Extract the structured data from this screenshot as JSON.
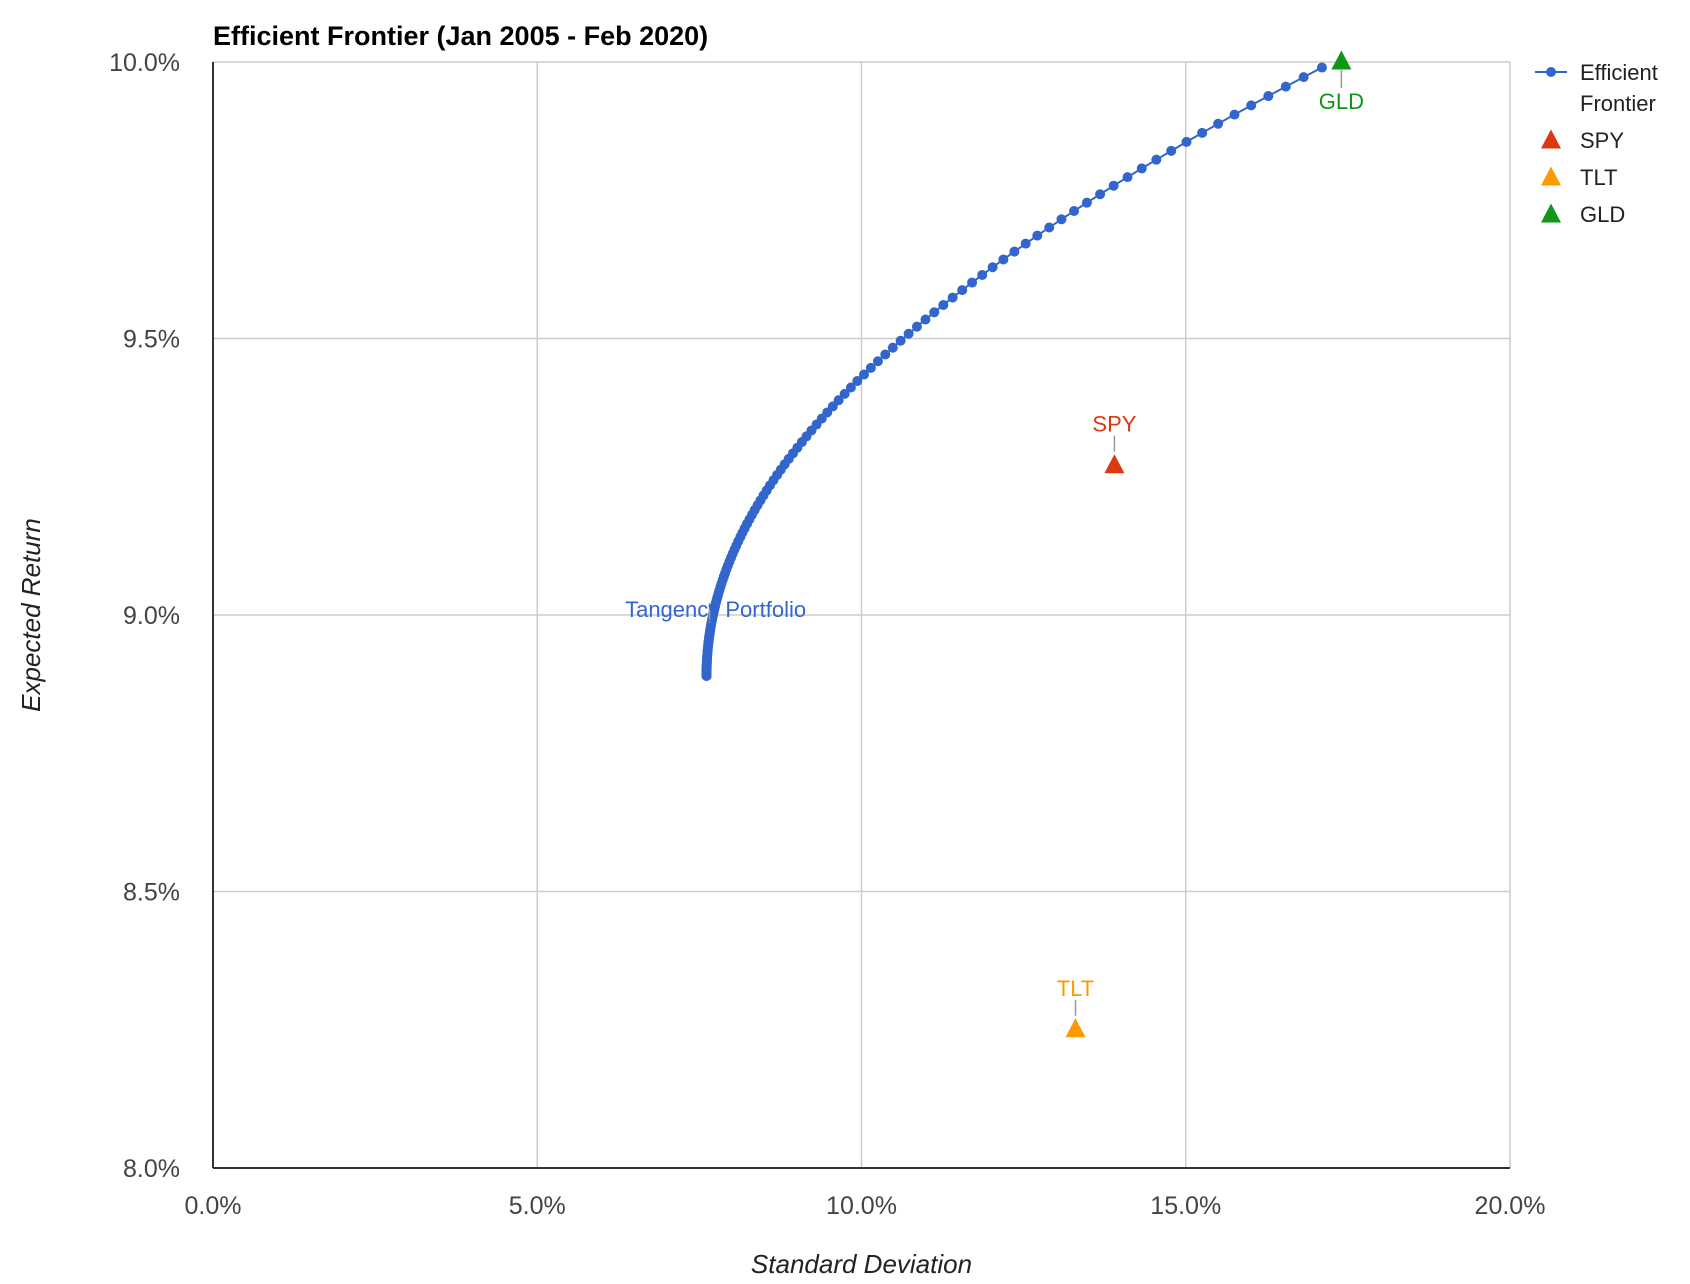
{
  "chart_data": {
    "type": "scatter",
    "title": "Efficient Frontier (Jan 2005 - Feb 2020)",
    "xlabel": "Standard Deviation",
    "ylabel": "Expected Return",
    "xlim": [
      0,
      20
    ],
    "ylim": [
      8.0,
      10.0
    ],
    "x_ticks": [
      "0.0%",
      "5.0%",
      "10.0%",
      "15.0%",
      "20.0%"
    ],
    "y_ticks": [
      "8.0%",
      "8.5%",
      "9.0%",
      "9.5%",
      "10.0%"
    ],
    "grid": true,
    "legend_position": "right",
    "legend": [
      {
        "label_lines": [
          "Efficient",
          "Frontier"
        ],
        "color": "#3366cc",
        "marker": "line-dot"
      },
      {
        "label_lines": [
          "SPY"
        ],
        "color": "#dc3912",
        "marker": "triangle"
      },
      {
        "label_lines": [
          "TLT"
        ],
        "color": "#ff9900",
        "marker": "triangle"
      },
      {
        "label_lines": [
          "GLD"
        ],
        "color": "#109618",
        "marker": "triangle"
      }
    ],
    "frontier": {
      "name": "Efficient Frontier",
      "color": "#3366cc",
      "min_variance": {
        "x": 7.61,
        "y": 8.89
      },
      "end": {
        "x": 17.1,
        "y": 9.99
      },
      "curvature_k": 0.1188,
      "num_points": 140
    },
    "assets": [
      {
        "name": "SPY",
        "x": 13.9,
        "y": 9.27,
        "color": "#dc3912",
        "label_pos": "above"
      },
      {
        "name": "TLT",
        "x": 13.3,
        "y": 8.25,
        "color": "#ff9900",
        "label_pos": "above"
      },
      {
        "name": "GLD",
        "x": 17.4,
        "y": 10.0,
        "color": "#109618",
        "label_pos": "below"
      }
    ],
    "annotations": [
      {
        "text": "Tangency Portfolio",
        "x": 7.75,
        "y": 9.0,
        "color": "#3366cc"
      }
    ]
  }
}
